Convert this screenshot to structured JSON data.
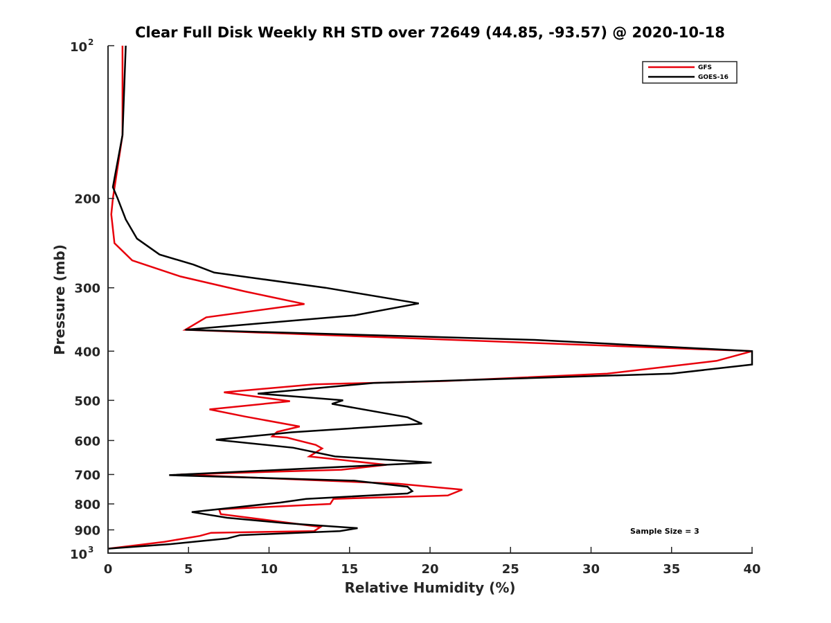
{
  "chart_data": {
    "type": "line",
    "title": "Clear Full Disk Weekly RH STD over 72649 (44.85, -93.57) @ 2020-10-18",
    "xlabel": "Relative Humidity (%)",
    "ylabel": "Pressure (mb)",
    "xlim": [
      0,
      40
    ],
    "ylim": [
      100,
      1000
    ],
    "y_scale": "log",
    "y_reversed": true,
    "grid": false,
    "legend_position": "top-right",
    "x_ticks": [
      "0",
      "5",
      "10",
      "15",
      "20",
      "25",
      "30",
      "35",
      "40"
    ],
    "y_ticks": [
      {
        "value": 100,
        "label": "10",
        "exponent": "2"
      },
      {
        "value": 200,
        "label": "200"
      },
      {
        "value": 300,
        "label": "300"
      },
      {
        "value": 400,
        "label": "400"
      },
      {
        "value": 500,
        "label": "500"
      },
      {
        "value": 600,
        "label": "600"
      },
      {
        "value": 700,
        "label": "700"
      },
      {
        "value": 800,
        "label": "800"
      },
      {
        "value": 900,
        "label": "900"
      },
      {
        "value": 1000,
        "label": "10",
        "exponent": "3"
      }
    ],
    "annotation": "Sample Size = 3",
    "series": [
      {
        "name": "GFS",
        "color": "#e8000b",
        "points": [
          [
            0.9,
            100
          ],
          [
            0.9,
            150
          ],
          [
            0.3,
            200
          ],
          [
            0.2,
            215
          ],
          [
            0.4,
            245
          ],
          [
            1.5,
            265
          ],
          [
            4.5,
            285
          ],
          [
            8.5,
            305
          ],
          [
            12.2,
            323
          ],
          [
            6.1,
            343
          ],
          [
            4.8,
            363
          ],
          [
            40,
            400
          ],
          [
            37.8,
            418
          ],
          [
            31,
            443
          ],
          [
            21,
            458
          ],
          [
            12.8,
            465
          ],
          [
            7.2,
            482
          ],
          [
            11.3,
            502
          ],
          [
            6.3,
            521
          ],
          [
            8.5,
            538
          ],
          [
            11.9,
            563
          ],
          [
            10.5,
            577
          ],
          [
            10.2,
            589
          ],
          [
            11.1,
            592
          ],
          [
            12.9,
            612
          ],
          [
            13.3,
            622
          ],
          [
            12.5,
            645
          ],
          [
            17.3,
            670
          ],
          [
            14.5,
            685
          ],
          [
            4.5,
            700
          ],
          [
            18,
            730
          ],
          [
            22,
            750
          ],
          [
            21.1,
            770
          ],
          [
            14,
            782
          ],
          [
            13.8,
            800
          ],
          [
            6.9,
            820
          ],
          [
            7.0,
            838
          ],
          [
            13.2,
            888
          ],
          [
            12.8,
            905
          ],
          [
            6.4,
            912
          ],
          [
            5.7,
            925
          ],
          [
            3.5,
            950
          ],
          [
            0,
            980
          ]
        ]
      },
      {
        "name": "GOES-16",
        "color": "#000000",
        "points": [
          [
            1.1,
            100
          ],
          [
            0.9,
            150
          ],
          [
            0.3,
            190
          ],
          [
            0.6,
            200
          ],
          [
            1.1,
            220
          ],
          [
            1.8,
            240
          ],
          [
            3.2,
            258
          ],
          [
            5.3,
            270
          ],
          [
            6.6,
            280
          ],
          [
            13.5,
            300
          ],
          [
            19.3,
            322
          ],
          [
            15.3,
            340
          ],
          [
            4.8,
            363
          ],
          [
            26.5,
            380
          ],
          [
            40,
            400
          ],
          [
            40,
            425
          ],
          [
            35,
            443
          ],
          [
            16.5,
            462
          ],
          [
            9.3,
            485
          ],
          [
            14.6,
            500
          ],
          [
            13.9,
            508
          ],
          [
            18.6,
            540
          ],
          [
            19.5,
            556
          ],
          [
            11.4,
            578
          ],
          [
            6.7,
            598
          ],
          [
            11.5,
            620
          ],
          [
            14.1,
            645
          ],
          [
            20.1,
            663
          ],
          [
            3.8,
            702
          ],
          [
            15.3,
            720
          ],
          [
            18.6,
            740
          ],
          [
            18.9,
            755
          ],
          [
            18.6,
            763
          ],
          [
            12.3,
            782
          ],
          [
            10.7,
            795
          ],
          [
            5.2,
            830
          ],
          [
            7.4,
            852
          ],
          [
            11,
            873
          ],
          [
            15.5,
            893
          ],
          [
            14.4,
            905
          ],
          [
            8.2,
            922
          ],
          [
            7.4,
            936
          ],
          [
            3.9,
            960
          ],
          [
            0,
            980
          ]
        ]
      }
    ]
  }
}
